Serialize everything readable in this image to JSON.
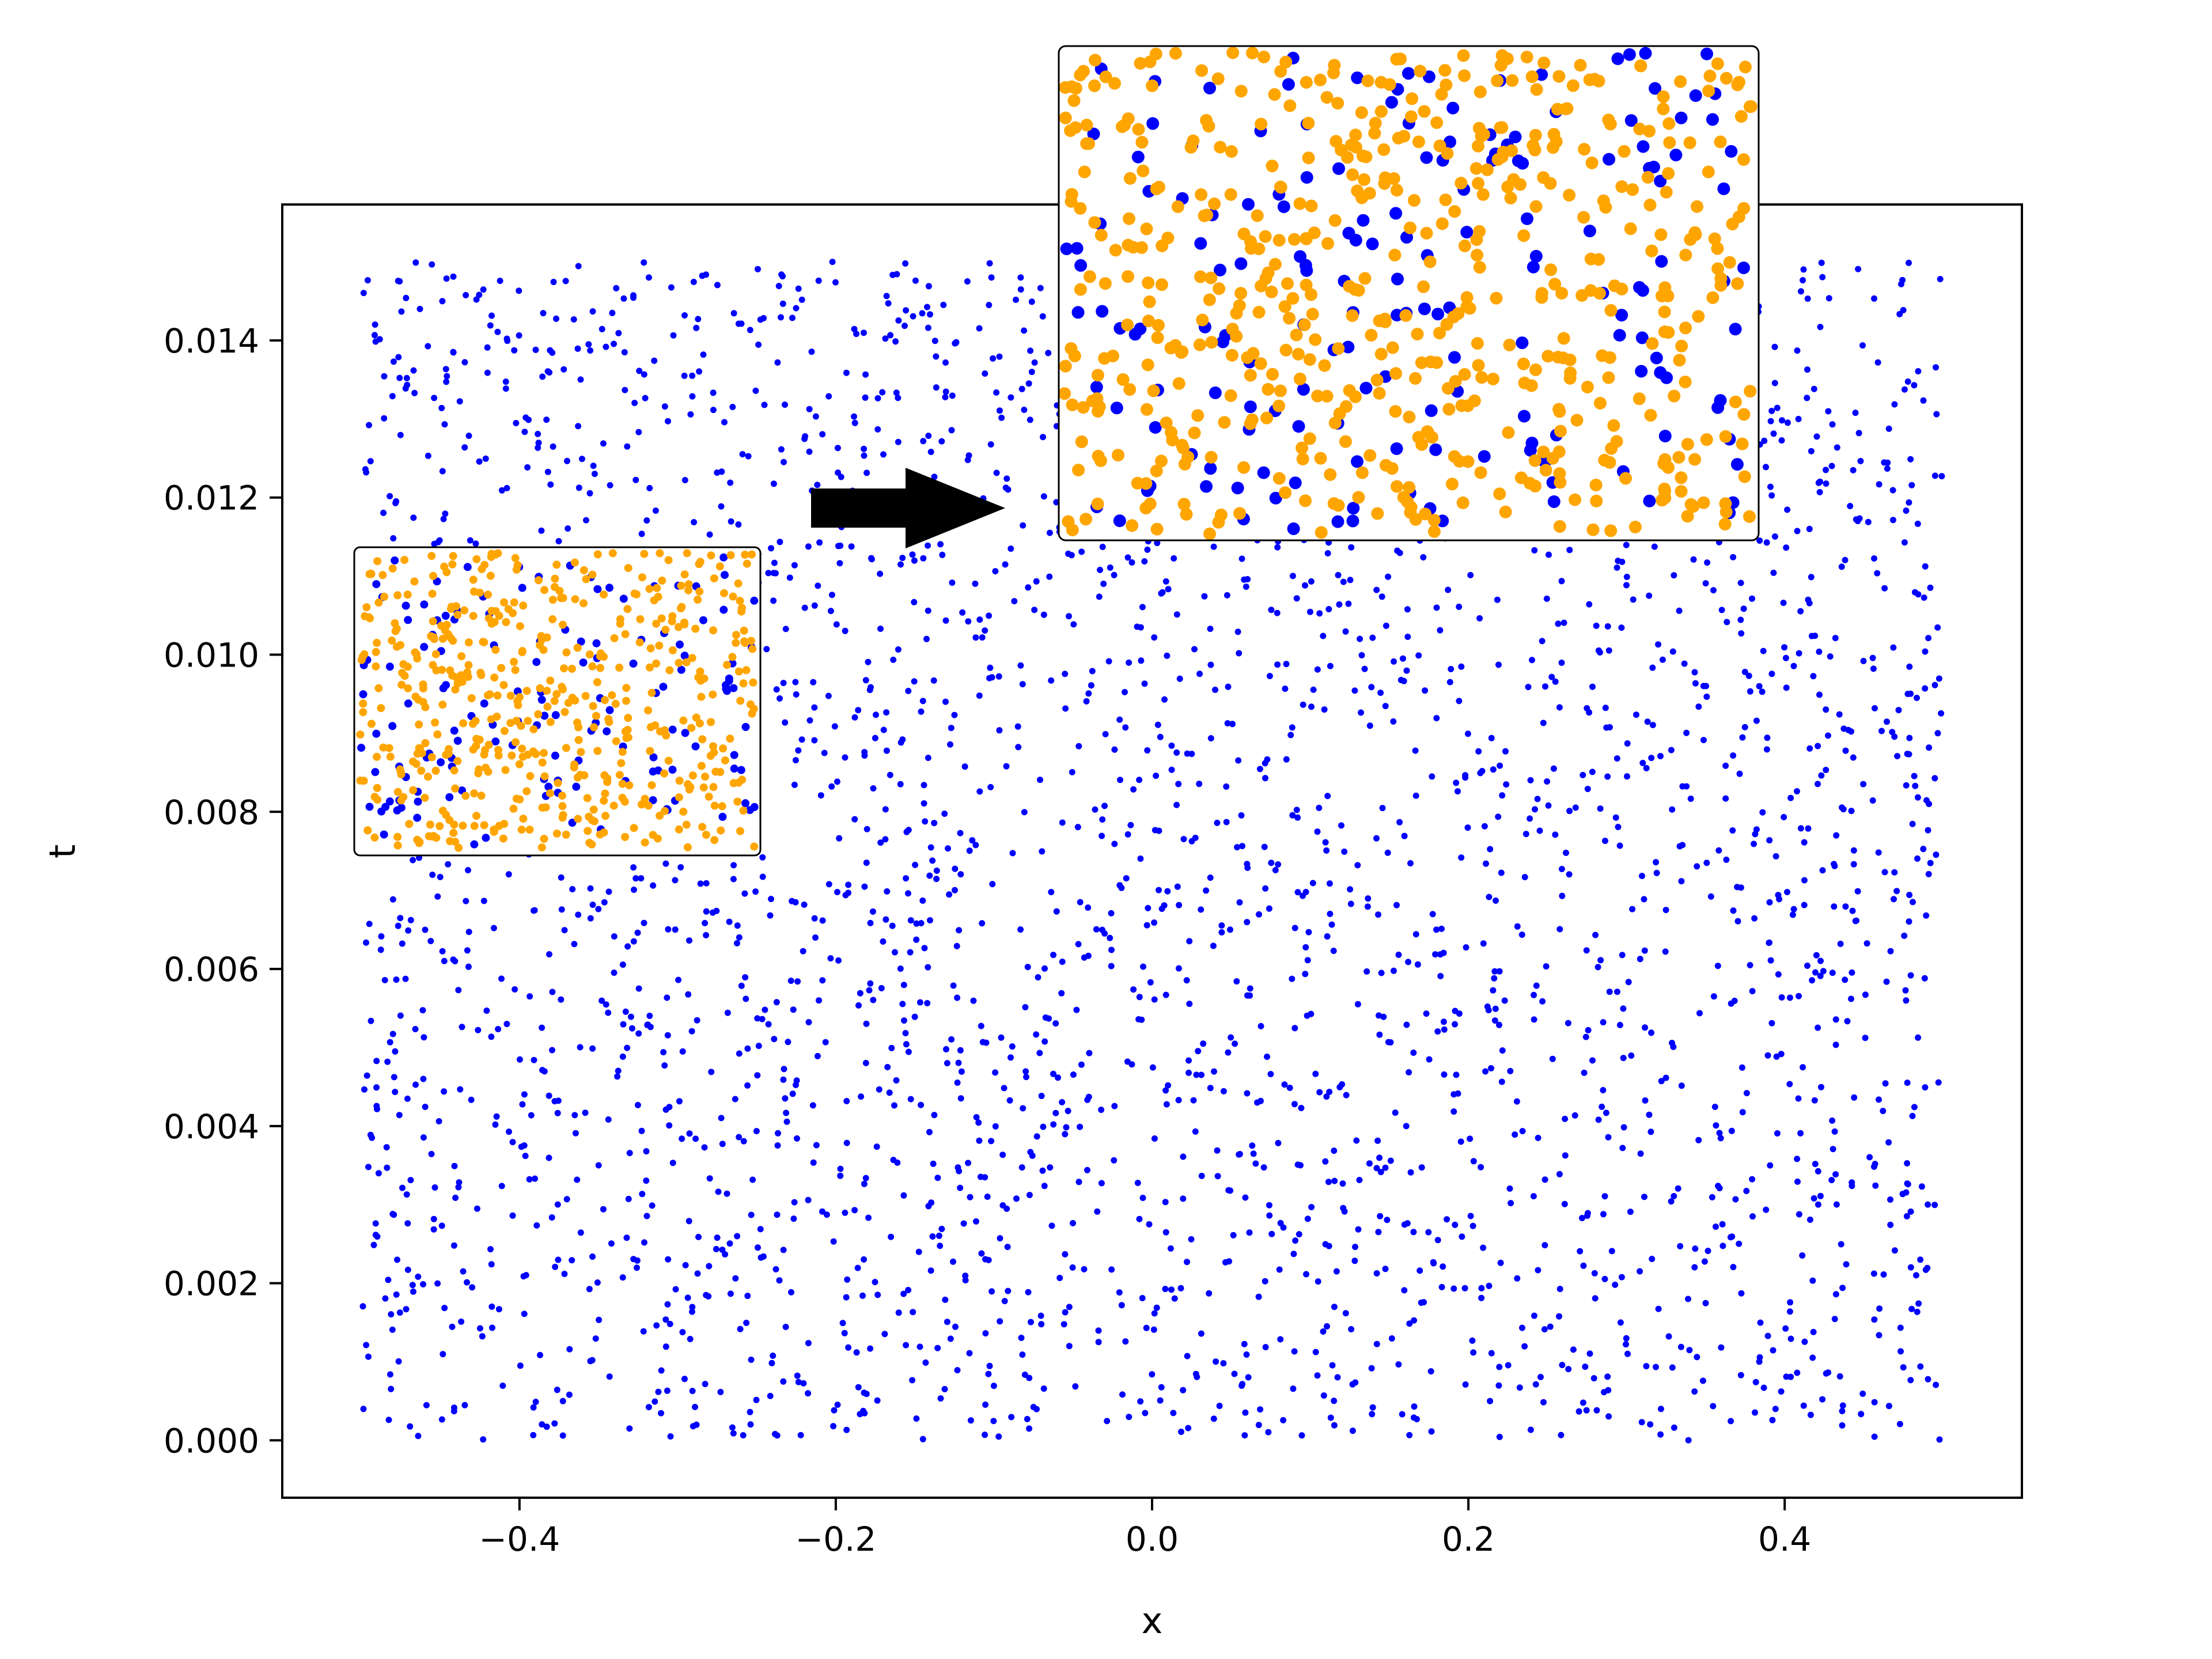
{
  "chart_data": {
    "type": "scatter",
    "title": "",
    "xlabel": "x",
    "ylabel": "t",
    "xlim": [
      -0.55,
      0.55
    ],
    "ylim": [
      -0.00073,
      0.01573
    ],
    "xticks": [
      -0.4,
      -0.2,
      0.0,
      0.2,
      0.4
    ],
    "xtick_labels": [
      "−0.4",
      "−0.2",
      "0.0",
      "0.2",
      "0.4"
    ],
    "yticks": [
      0.0,
      0.002,
      0.004,
      0.006,
      0.008,
      0.01,
      0.012,
      0.014
    ],
    "ytick_labels": [
      "0.000",
      "0.002",
      "0.004",
      "0.006",
      "0.008",
      "0.010",
      "0.012",
      "0.014"
    ],
    "grid": false,
    "legend": "none",
    "main_series": {
      "color": "#0000ff",
      "point_count": 3000,
      "x_range": [
        -0.5,
        0.5
      ],
      "t_range": [
        0.0,
        0.015
      ],
      "distribution": "uniform random (Latin-hypercube-like) collocation points"
    },
    "insets": [
      {
        "name": "small",
        "description": "zoomed sample of points",
        "series": [
          {
            "color": "#0000ff",
            "point_count": 140
          },
          {
            "color": "#ffa500",
            "point_count": 520
          }
        ]
      },
      {
        "name": "large",
        "description": "further magnified view",
        "series": [
          {
            "color": "#0000ff",
            "point_count": 170
          },
          {
            "color": "#ffa500",
            "point_count": 560
          }
        ]
      }
    ],
    "annotations": [
      {
        "type": "arrow",
        "from": "small inset",
        "to": "large inset",
        "color": "#000000"
      }
    ]
  }
}
